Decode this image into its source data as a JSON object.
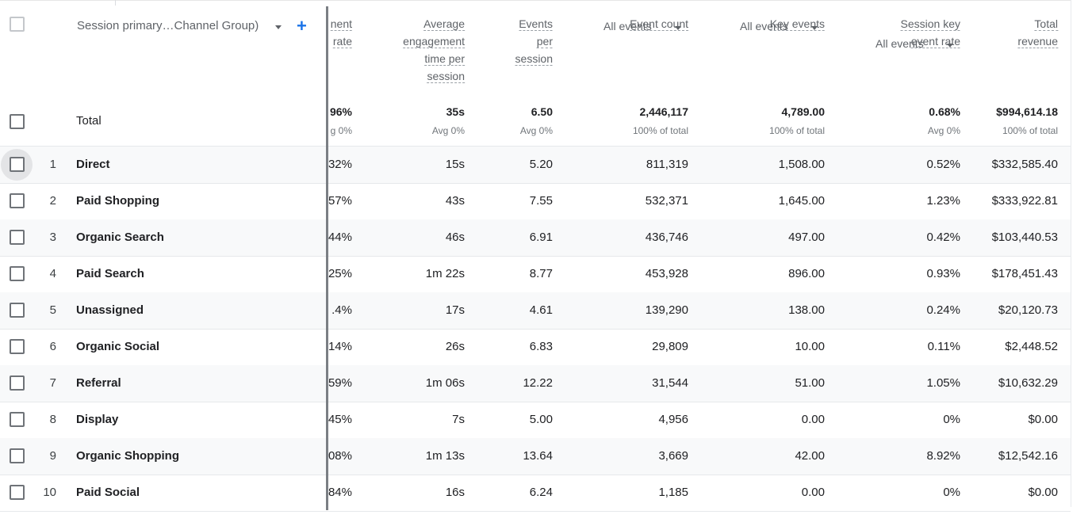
{
  "table": {
    "dimension_header": "Session primary…Channel Group)",
    "columns": [
      {
        "key": "engagement_rate",
        "label_lines": [
          "nent",
          "rate"
        ],
        "selector": ""
      },
      {
        "key": "avg_engagement_time",
        "label_lines": [
          "Average",
          "engagement",
          "time per",
          "session"
        ],
        "selector": ""
      },
      {
        "key": "events_per_session",
        "label_lines": [
          "Events",
          "per",
          "session"
        ],
        "selector": ""
      },
      {
        "key": "event_count",
        "label_lines": [
          "Event count"
        ],
        "selector": "All events"
      },
      {
        "key": "key_events",
        "label_lines": [
          "Key events"
        ],
        "selector": "All events"
      },
      {
        "key": "session_key_event_rate",
        "label_lines": [
          "Session key",
          "event rate"
        ],
        "selector": "All events"
      },
      {
        "key": "total_revenue",
        "label_lines": [
          "Total",
          "revenue"
        ],
        "selector": ""
      }
    ],
    "total": {
      "label": "Total",
      "values": [
        "96%",
        "35s",
        "6.50",
        "2,446,117",
        "4,789.00",
        "0.68%",
        "$994,614.18"
      ],
      "subs": [
        "g 0%",
        "Avg 0%",
        "Avg 0%",
        "100% of total",
        "100% of total",
        "Avg 0%",
        "100% of total"
      ]
    },
    "rows": [
      {
        "index": "1",
        "channel": "Direct",
        "values": [
          "32%",
          "15s",
          "5.20",
          "811,319",
          "1,508.00",
          "0.52%",
          "$332,585.40"
        ]
      },
      {
        "index": "2",
        "channel": "Paid Shopping",
        "values": [
          "57%",
          "43s",
          "7.55",
          "532,371",
          "1,645.00",
          "1.23%",
          "$333,922.81"
        ]
      },
      {
        "index": "3",
        "channel": "Organic Search",
        "values": [
          "44%",
          "46s",
          "6.91",
          "436,746",
          "497.00",
          "0.42%",
          "$103,440.53"
        ]
      },
      {
        "index": "4",
        "channel": "Paid Search",
        "values": [
          "25%",
          "1m 22s",
          "8.77",
          "453,928",
          "896.00",
          "0.93%",
          "$178,451.43"
        ]
      },
      {
        "index": "5",
        "channel": "Unassigned",
        "values": [
          ".4%",
          "17s",
          "4.61",
          "139,290",
          "138.00",
          "0.24%",
          "$20,120.73"
        ]
      },
      {
        "index": "6",
        "channel": "Organic Social",
        "values": [
          "14%",
          "26s",
          "6.83",
          "29,809",
          "10.00",
          "0.11%",
          "$2,448.52"
        ]
      },
      {
        "index": "7",
        "channel": "Referral",
        "values": [
          "59%",
          "1m 06s",
          "12.22",
          "31,544",
          "51.00",
          "1.05%",
          "$10,632.29"
        ]
      },
      {
        "index": "8",
        "channel": "Display",
        "values": [
          "45%",
          "7s",
          "5.00",
          "4,956",
          "0.00",
          "0%",
          "$0.00"
        ]
      },
      {
        "index": "9",
        "channel": "Organic Shopping",
        "values": [
          "08%",
          "1m 13s",
          "13.64",
          "3,669",
          "42.00",
          "8.92%",
          "$12,542.16"
        ]
      },
      {
        "index": "10",
        "channel": "Paid Social",
        "values": [
          "84%",
          "16s",
          "6.24",
          "1,185",
          "0.00",
          "0%",
          "$0.00"
        ]
      }
    ]
  },
  "icons": {
    "add": "plus-icon",
    "sort": "caret-down-icon",
    "checkbox": "checkbox-icon"
  },
  "colors": {
    "accent": "#1a73e8",
    "row_shade": "#f8f9fa",
    "divider": "#7b7f84"
  }
}
